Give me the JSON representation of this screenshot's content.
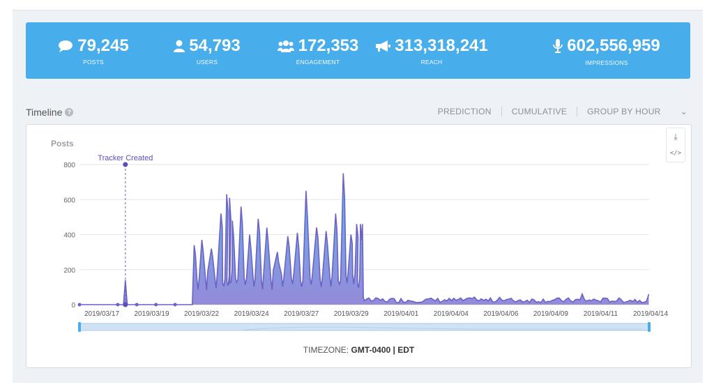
{
  "stats": [
    {
      "icon": "comment-icon",
      "value": "79,245",
      "label": "POSTS"
    },
    {
      "icon": "user-icon",
      "value": "54,793",
      "label": "USERS"
    },
    {
      "icon": "users-group-icon",
      "value": "172,353",
      "label": "ENGAGEMENT"
    },
    {
      "icon": "megaphone-icon",
      "value": "313,318,241",
      "label": "REACH"
    },
    {
      "icon": "microphone-icon",
      "value": "602,556,959",
      "label": "IMPRESSIONS"
    }
  ],
  "timeline": {
    "title": "Timeline",
    "help_icon": "?",
    "prediction_label": "PREDICTION",
    "cumulative_label": "CUMULATIVE",
    "group_label": "GROUP BY HOUR",
    "chevron": "⌄",
    "timezone_label": "TIMEZONE:",
    "timezone_value": "GMT-0400 | EDT"
  },
  "toolbar": {
    "download_icon": "⤓",
    "embed_icon": "</>"
  },
  "colors": {
    "accent": "#48adeb",
    "series": "#6a62c4",
    "fill_top": "#5ab3ea",
    "fill_bottom": "#8f84d8"
  },
  "chart_data": {
    "type": "area",
    "ylabel": "Posts",
    "yticks": [
      0,
      200,
      400,
      600,
      800
    ],
    "ylim": [
      0,
      800
    ],
    "x_tick_labels": [
      "2019/03/17",
      "2019/03/19",
      "2019/03/22",
      "2019/03/24",
      "2019/03/27",
      "2019/03/29",
      "2019/04/01",
      "2019/04/04",
      "2019/04/06",
      "2019/04/09",
      "2019/04/11",
      "2019/04/14"
    ],
    "annotation": {
      "label": "Tracker Created",
      "day": 2.4,
      "value": 800
    },
    "spike": {
      "day": 2.4,
      "value": 140
    },
    "low_points": [
      {
        "day": 0,
        "value": 0
      },
      {
        "day": 2,
        "value": 0
      },
      {
        "day": 3,
        "value": 0
      },
      {
        "day": 4,
        "value": 0
      },
      {
        "day": 5,
        "value": 0
      }
    ],
    "peaks": [
      {
        "day": 6.0,
        "value": 340
      },
      {
        "day": 6.4,
        "value": 370
      },
      {
        "day": 6.9,
        "value": 320
      },
      {
        "day": 7.4,
        "value": 520
      },
      {
        "day": 7.7,
        "value": 630
      },
      {
        "day": 7.85,
        "value": 610
      },
      {
        "day": 8.0,
        "value": 480
      },
      {
        "day": 8.45,
        "value": 560
      },
      {
        "day": 8.9,
        "value": 400
      },
      {
        "day": 9.35,
        "value": 490
      },
      {
        "day": 9.8,
        "value": 440
      },
      {
        "day": 10.35,
        "value": 300
      },
      {
        "day": 10.9,
        "value": 390
      },
      {
        "day": 11.4,
        "value": 410
      },
      {
        "day": 11.85,
        "value": 650
      },
      {
        "day": 12.4,
        "value": 440
      },
      {
        "day": 12.9,
        "value": 420
      },
      {
        "day": 13.4,
        "value": 520
      },
      {
        "day": 13.8,
        "value": 750
      },
      {
        "day": 14.2,
        "value": 400
      },
      {
        "day": 14.5,
        "value": 460
      },
      {
        "day": 14.7,
        "value": 460
      }
    ],
    "tail_level": 25,
    "x_range_days": [
      0,
      29.8
    ],
    "grid": true
  }
}
